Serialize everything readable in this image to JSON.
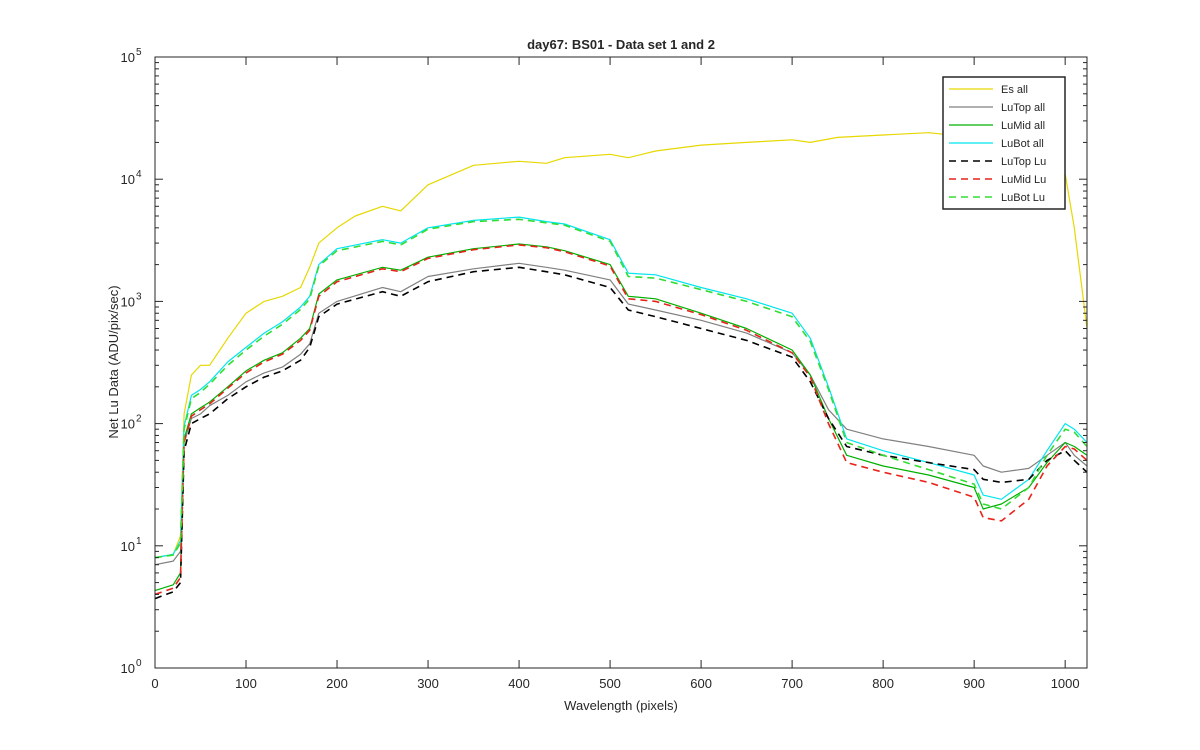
{
  "chart_data": {
    "type": "line",
    "title": "day67: BS01 - Data set 1 and 2",
    "xlabel": "Wavelength (pixels)",
    "ylabel": "Net Lu Data (ADU/pix/sec)",
    "xlim": [
      0,
      1024
    ],
    "ylim": [
      1,
      100000
    ],
    "yscale": "log",
    "grid": false,
    "legend_position": "top-right",
    "x_ticks": [
      0,
      100,
      200,
      300,
      400,
      500,
      600,
      700,
      800,
      900,
      1000
    ],
    "y_ticks": [
      {
        "value": 1,
        "base": "10",
        "exp": "0"
      },
      {
        "value": 10,
        "base": "10",
        "exp": "1"
      },
      {
        "value": 100,
        "base": "10",
        "exp": "2"
      },
      {
        "value": 1000,
        "base": "10",
        "exp": "3"
      },
      {
        "value": 10000,
        "base": "10",
        "exp": "4"
      },
      {
        "value": 100000,
        "base": "10",
        "exp": "5"
      }
    ],
    "series": [
      {
        "name": "Es  all",
        "color": "#e6d800",
        "dash": "solid",
        "x": [
          0,
          20,
          28,
          32,
          40,
          50,
          60,
          80,
          100,
          120,
          140,
          160,
          170,
          180,
          200,
          220,
          250,
          270,
          300,
          350,
          400,
          430,
          450,
          500,
          520,
          550,
          600,
          650,
          700,
          720,
          750,
          800,
          850,
          900,
          950,
          980,
          1000,
          1010,
          1024
        ],
        "y": [
          8,
          8.5,
          12,
          120,
          250,
          300,
          300,
          500,
          800,
          1000,
          1100,
          1300,
          1900,
          3000,
          4000,
          5000,
          6000,
          5500,
          9000,
          13000,
          14000,
          13500,
          15000,
          16000,
          15000,
          17000,
          19000,
          20000,
          21000,
          20000,
          22000,
          23000,
          24000,
          22000,
          23000,
          17000,
          11000,
          4000,
          600
        ]
      },
      {
        "name": "LuTop  all",
        "color": "#808080",
        "dash": "solid",
        "x": [
          0,
          20,
          28,
          32,
          40,
          50,
          60,
          80,
          100,
          120,
          140,
          160,
          170,
          180,
          200,
          250,
          270,
          300,
          350,
          400,
          430,
          450,
          500,
          520,
          550,
          600,
          650,
          700,
          720,
          740,
          760,
          800,
          850,
          900,
          910,
          930,
          960,
          980,
          1000,
          1010,
          1024
        ],
        "y": [
          7,
          7.5,
          9,
          70,
          110,
          120,
          140,
          170,
          220,
          260,
          290,
          370,
          450,
          800,
          1000,
          1300,
          1200,
          1600,
          1850,
          2050,
          1900,
          1800,
          1500,
          950,
          850,
          700,
          550,
          380,
          250,
          130,
          90,
          75,
          65,
          55,
          45,
          40,
          43,
          55,
          70,
          55,
          45
        ]
      },
      {
        "name": "LuMid  all",
        "color": "#00b000",
        "dash": "solid",
        "x": [
          0,
          20,
          28,
          32,
          40,
          50,
          60,
          80,
          100,
          120,
          140,
          160,
          170,
          180,
          200,
          250,
          270,
          300,
          350,
          400,
          430,
          450,
          500,
          520,
          550,
          600,
          650,
          700,
          720,
          740,
          760,
          800,
          850,
          900,
          910,
          930,
          960,
          980,
          1000,
          1010,
          1024
        ],
        "y": [
          4.3,
          4.8,
          6,
          75,
          120,
          135,
          150,
          200,
          270,
          330,
          380,
          500,
          600,
          1150,
          1500,
          1900,
          1800,
          2300,
          2700,
          2950,
          2800,
          2600,
          2000,
          1100,
          1050,
          800,
          600,
          400,
          250,
          110,
          55,
          45,
          38,
          30,
          20,
          22,
          30,
          48,
          70,
          65,
          55
        ]
      },
      {
        "name": "LuBot  all",
        "color": "#00e5ee",
        "dash": "solid",
        "x": [
          0,
          20,
          28,
          32,
          40,
          50,
          60,
          80,
          100,
          120,
          140,
          160,
          170,
          180,
          200,
          250,
          270,
          300,
          350,
          400,
          430,
          450,
          500,
          520,
          550,
          600,
          650,
          700,
          720,
          740,
          760,
          800,
          850,
          900,
          910,
          930,
          960,
          980,
          1000,
          1010,
          1024
        ],
        "y": [
          8,
          8.5,
          11,
          95,
          170,
          190,
          220,
          320,
          420,
          550,
          680,
          900,
          1100,
          2000,
          2700,
          3200,
          3000,
          4000,
          4600,
          4900,
          4500,
          4300,
          3200,
          1700,
          1650,
          1300,
          1050,
          800,
          500,
          200,
          75,
          60,
          48,
          38,
          26,
          24,
          35,
          60,
          100,
          90,
          70
        ]
      },
      {
        "name": "LuTop  Lu",
        "color": "#000000",
        "dash": "dashed",
        "x": [
          0,
          20,
          28,
          32,
          40,
          50,
          60,
          80,
          100,
          120,
          140,
          160,
          170,
          180,
          200,
          250,
          270,
          300,
          350,
          400,
          430,
          450,
          500,
          520,
          550,
          600,
          650,
          700,
          720,
          740,
          760,
          800,
          850,
          900,
          910,
          930,
          960,
          980,
          1000,
          1010,
          1024
        ],
        "y": [
          3.7,
          4.2,
          5,
          60,
          100,
          110,
          120,
          160,
          200,
          240,
          270,
          330,
          420,
          750,
          950,
          1200,
          1100,
          1450,
          1750,
          1900,
          1750,
          1650,
          1300,
          850,
          750,
          600,
          480,
          350,
          220,
          110,
          65,
          55,
          48,
          42,
          35,
          33,
          35,
          50,
          60,
          50,
          40
        ]
      },
      {
        "name": "LuMid  Lu",
        "color": "#e8231a",
        "dash": "dashed",
        "x": [
          0,
          20,
          28,
          32,
          40,
          50,
          60,
          80,
          100,
          120,
          140,
          160,
          170,
          180,
          200,
          250,
          270,
          300,
          350,
          400,
          430,
          450,
          500,
          520,
          550,
          600,
          650,
          700,
          720,
          740,
          760,
          800,
          850,
          900,
          910,
          930,
          960,
          980,
          1000,
          1010,
          1024
        ],
        "y": [
          4,
          4.5,
          5.5,
          70,
          115,
          130,
          145,
          195,
          260,
          320,
          370,
          480,
          580,
          1100,
          1450,
          1850,
          1750,
          2250,
          2650,
          2900,
          2750,
          2550,
          1950,
          1050,
          1000,
          780,
          580,
          380,
          240,
          100,
          48,
          40,
          33,
          25,
          17,
          16,
          24,
          45,
          65,
          62,
          50
        ]
      },
      {
        "name": "LuBot  Lu",
        "color": "#33dd33",
        "dash": "dashed",
        "x": [
          0,
          20,
          28,
          32,
          40,
          50,
          60,
          80,
          100,
          120,
          140,
          160,
          170,
          180,
          200,
          250,
          270,
          300,
          350,
          400,
          430,
          450,
          500,
          520,
          550,
          600,
          650,
          700,
          720,
          740,
          760,
          800,
          850,
          900,
          910,
          930,
          960,
          980,
          1000,
          1010,
          1024
        ],
        "y": [
          8,
          8.4,
          10.5,
          90,
          160,
          180,
          210,
          300,
          400,
          520,
          650,
          860,
          1050,
          1950,
          2600,
          3100,
          2900,
          3900,
          4500,
          4700,
          4400,
          4200,
          3100,
          1600,
          1550,
          1250,
          1000,
          750,
          470,
          190,
          70,
          55,
          42,
          32,
          22,
          20,
          30,
          55,
          90,
          85,
          65
        ]
      }
    ]
  }
}
